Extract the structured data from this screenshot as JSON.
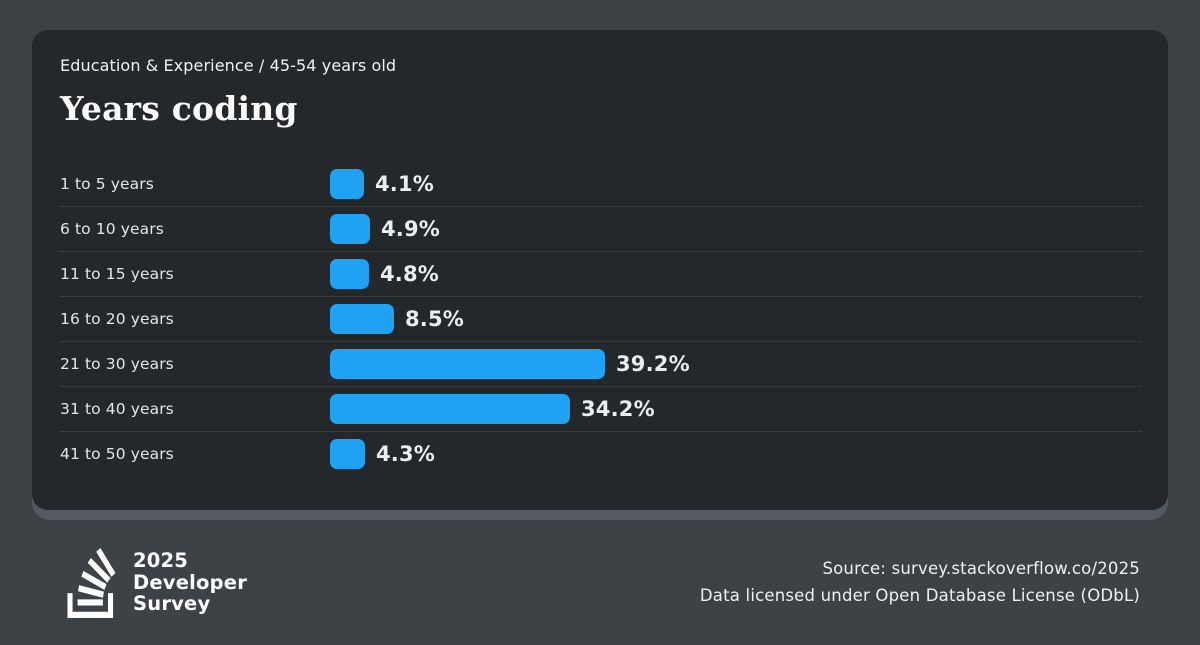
{
  "chart_data": {
    "type": "bar",
    "orientation": "horizontal",
    "subtitle": "Education & Experience / 45-54 years old",
    "title": "Years coding",
    "categories": [
      "1 to 5 years",
      "6 to 10 years",
      "11 to 15 years",
      "16 to 20 years",
      "21 to 30 years",
      "31 to 40 years",
      "41 to 50 years"
    ],
    "values": [
      4.1,
      4.9,
      4.8,
      8.5,
      39.2,
      34.2,
      4.3
    ],
    "value_suffix": "%",
    "xlim": [
      0,
      40
    ],
    "grid": false,
    "legend": "none",
    "bar_color": "#1fa1f4"
  },
  "footer": {
    "logo_lines": [
      "2025",
      "Developer",
      "Survey"
    ],
    "source_line": "Source: survey.stackoverflow.co/2025",
    "license_line": "Data licensed under Open Database License (ODbL)"
  },
  "colors": {
    "page_background": "#3d4247",
    "card_background": "#25282b",
    "card_bottom_edge": "#545a61",
    "bar": "#1fa1f4",
    "separator": "#4b5056",
    "label_text": "#e4e5e7",
    "value_text": "#ebedee",
    "title_text": "#fbfbfc"
  }
}
